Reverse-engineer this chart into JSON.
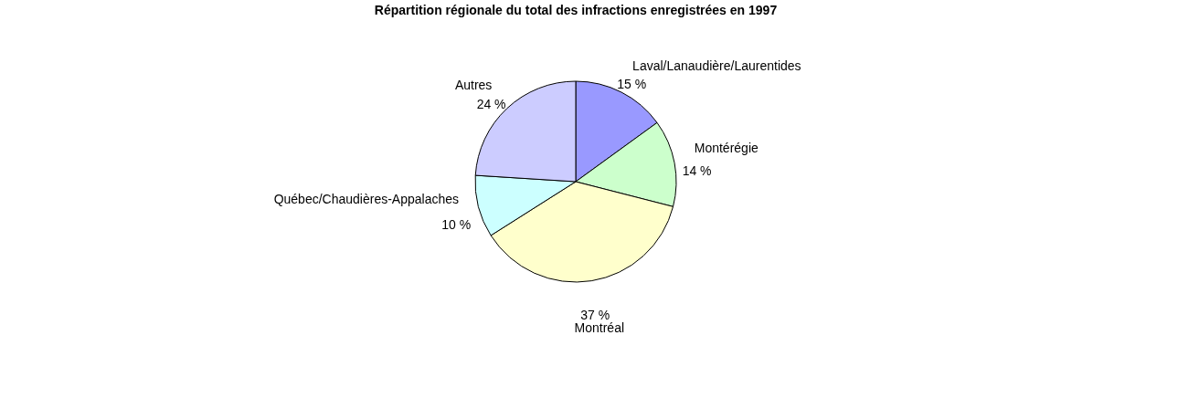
{
  "chart_data": {
    "type": "pie",
    "title": "Répartition régionale du total des infractions enregistrées en 1997",
    "categories": [
      "Laval/Lanaudière/Laurentides",
      "Montérégie",
      "Montréal",
      "Québec/Chaudières-Appalaches",
      "Autres"
    ],
    "values": [
      15,
      14,
      37,
      10,
      24
    ],
    "value_labels": [
      "15 %",
      "14 %",
      "37 %",
      "10 %",
      "24 %"
    ],
    "colors": [
      "#9999ff",
      "#ccffcc",
      "#ffffcc",
      "#ccffff",
      "#ccccff"
    ],
    "legend": false
  }
}
